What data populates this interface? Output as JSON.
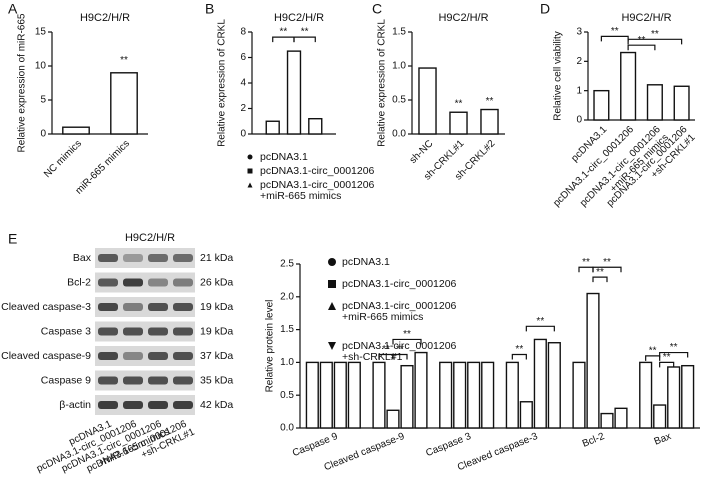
{
  "chart_data": [
    {
      "type": "bar",
      "panel": "A",
      "title": "H9C2/H/R",
      "y_label": "Relative expression of miR-665",
      "categories": [
        "NC mimics",
        "miR-665 mimics"
      ],
      "values": [
        1,
        9
      ],
      "ylim": [
        0,
        15
      ],
      "yticks": [
        0,
        5,
        10,
        15
      ],
      "color": "#ffffff",
      "annotations": [
        "**"
      ]
    },
    {
      "type": "bar",
      "panel": "B",
      "title": "H9C2/H/R",
      "y_label": "Relative expression of CRKL",
      "series": [
        {
          "name": [
            "pcDNA3.1"
          ],
          "marker": "circle",
          "color": "#ffffff",
          "values": [
            1
          ]
        },
        {
          "name": [
            "pcDNA3.1-circ_0001206"
          ],
          "marker": "square",
          "color": "#ffffff",
          "values": [
            6.5
          ]
        },
        {
          "name": [
            "pcDNA3.1-circ_0001206",
            "+miR-665 mimics"
          ],
          "marker": "triangle",
          "color": "#ffffff",
          "values": [
            1.2
          ]
        }
      ],
      "ylim": [
        0,
        8
      ],
      "yticks": [
        0,
        2,
        4,
        6,
        8
      ],
      "annotations": [
        "**",
        "**"
      ]
    },
    {
      "type": "bar",
      "panel": "C",
      "title": "H9C2/H/R",
      "y_label": "Relative expression of CRKL",
      "categories": [
        "sh-NC",
        "sh-CRKL#1",
        "sh-CRKL#2"
      ],
      "values": [
        0.97,
        0.32,
        0.36
      ],
      "color": "#ffffff",
      "ylim": [
        0,
        1.5
      ],
      "yticks": [
        {
          "value": 0,
          "label": "0.0"
        },
        0.5,
        {
          "value": 1,
          "label": "1.0"
        },
        1.5
      ],
      "annotations": [
        "**",
        "**"
      ]
    },
    {
      "type": "bar",
      "panel": "D",
      "title": "H9C2/H/R",
      "y_label": "Relative cell viability",
      "categories": [
        [
          "pcDNA3.1"
        ],
        [
          "pcDNA3.1-circ_0001206"
        ],
        [
          "pcDNA3.1-circ_0001206",
          "+miR-665 mimics"
        ],
        [
          "pcDNA3.1-circ_0001206",
          "+sh-CRKL#1"
        ]
      ],
      "values": [
        1,
        2.3,
        1.2,
        1.15
      ],
      "color": "#ffffff",
      "ylim": [
        0,
        3
      ],
      "yticks": [
        0,
        1,
        2,
        3
      ],
      "annotations": [
        "**",
        "**",
        "**"
      ]
    },
    {
      "type": "bar",
      "y_label": "Relative protein level",
      "categories": [
        "Caspase 9",
        "Cleaved caspase-9",
        "Caspase 3",
        "Cleaved caspase-3",
        "Bcl-2",
        "Bax"
      ],
      "series": [
        {
          "name": [
            "pcDNA3.1"
          ],
          "marker": "circle",
          "color": "#ffffff",
          "values": [
            1,
            1,
            1,
            1,
            1,
            1
          ]
        },
        {
          "name": [
            "pcDNA3.1-circ_0001206"
          ],
          "marker": "square",
          "color": "#ffffff",
          "values": [
            1,
            0.27,
            1,
            0.4,
            2.05,
            0.35
          ]
        },
        {
          "name": [
            "pcDNA3.1-circ_0001206",
            "+miR-665 mimics"
          ],
          "marker": "triangle",
          "color": "#ffffff",
          "values": [
            1,
            0.95,
            1,
            1.35,
            0.22,
            0.93
          ]
        },
        {
          "name": [
            "pcDNA3.1-circ_0001206",
            "+sh-CRKL#1"
          ],
          "marker": "triangle-down",
          "color": "#ffffff",
          "values": [
            1,
            1.15,
            1,
            1.3,
            0.3,
            0.95
          ]
        }
      ],
      "ylim": [
        0,
        2.5
      ],
      "yticks": [
        {
          "value": 0,
          "label": "0.0"
        },
        0.5,
        {
          "value": 1,
          "label": "1.0"
        },
        1.5,
        {
          "value": 2,
          "label": "2.0"
        },
        2.5
      ],
      "annotations": [
        "**",
        "**",
        "**",
        "**",
        "**",
        "**",
        "**",
        "**",
        "**",
        "**",
        "**"
      ]
    }
  ],
  "blot": {
    "panel": "E",
    "title": "H9C2/H/R",
    "rows": [
      {
        "label": "Bax",
        "size": "21 kDa"
      },
      {
        "label": "Bcl-2",
        "size": "26 kDa"
      },
      {
        "label": "Cleaved caspase-3",
        "size": "19 kDa"
      },
      {
        "label": "Caspase 3",
        "size": "19 kDa"
      },
      {
        "label": "Cleaved caspase-9",
        "size": "37 kDa"
      },
      {
        "label": "Caspase 9",
        "size": "35 kDa"
      },
      {
        "label": "β-actin",
        "size": "42 kDa"
      }
    ],
    "lanes": [
      [
        "pcDNA3.1"
      ],
      [
        "pcDNA3.1-circ_0001206"
      ],
      [
        "pcDNA3.1-circ_0001206",
        "+miR-665 mimics"
      ],
      [
        "pcDNA3.1-circ_0001206",
        "+sh-CRKL#1"
      ]
    ]
  }
}
